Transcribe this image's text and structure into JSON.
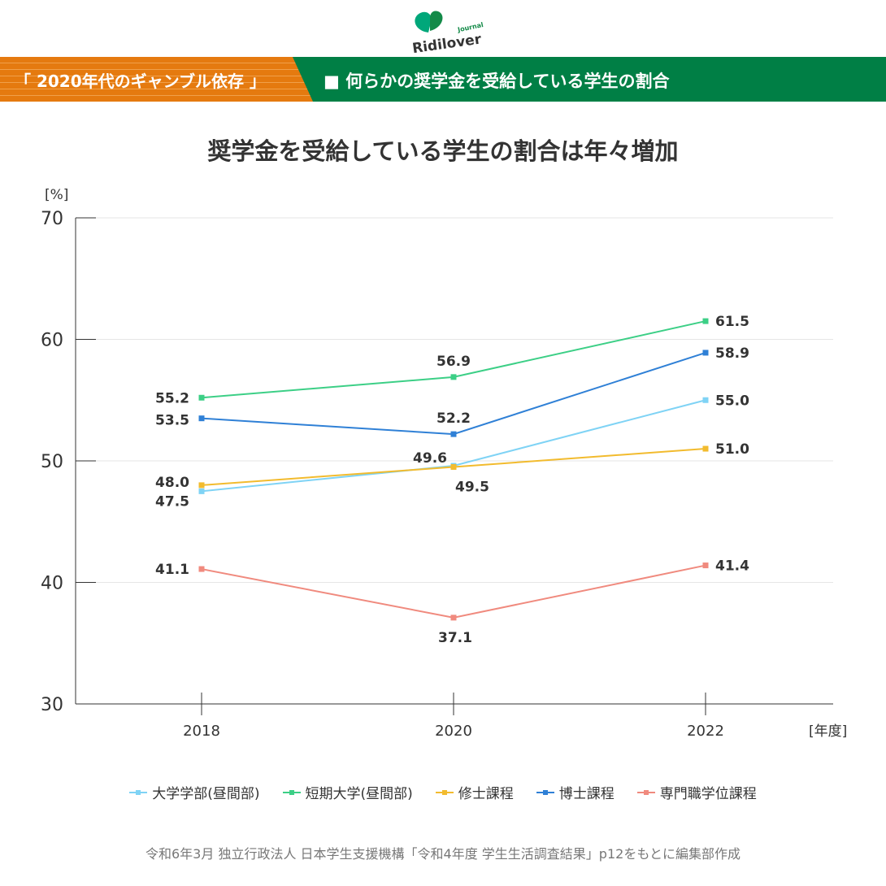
{
  "logo": {
    "brand": "Ridilover",
    "sub": "Journal"
  },
  "banner": {
    "series_label": "「 2020年代のギャンブル依存 」",
    "topic": "■ 何らかの奨学金を受給している学生の割合"
  },
  "chart_data": {
    "type": "line",
    "title": "奨学金を受給している学生の割合は年々増加",
    "ylabel": "[%]",
    "xlabel": "[年度]",
    "x": [
      "2018",
      "2020",
      "2022"
    ],
    "ylim": [
      30,
      70
    ],
    "yticks": [
      "30",
      "40",
      "50",
      "60",
      "70"
    ],
    "grid": true,
    "legend_placement": "bottom",
    "series": [
      {
        "name": "大学学部(昼間部)",
        "color": "#7fd3f5",
        "values": [
          47.5,
          49.6,
          55.0
        ],
        "labels": [
          "47.5",
          "49.6",
          "55.0"
        ]
      },
      {
        "name": "短期大学(昼間部)",
        "color": "#3ccf86",
        "values": [
          55.2,
          56.9,
          61.5
        ],
        "labels": [
          "55.2",
          "56.9",
          "61.5"
        ]
      },
      {
        "name": "修士課程",
        "color": "#f2bb2e",
        "values": [
          48.0,
          49.5,
          51.0
        ],
        "labels": [
          "48.0",
          "49.5",
          "51.0"
        ]
      },
      {
        "name": "博士課程",
        "color": "#2f80d6",
        "values": [
          53.5,
          52.2,
          58.9
        ],
        "labels": [
          "53.5",
          "52.2",
          "58.9"
        ]
      },
      {
        "name": "専門職学位課程",
        "color": "#f08a7e",
        "values": [
          41.1,
          37.1,
          41.4
        ],
        "labels": [
          "41.1",
          "37.1",
          "41.4"
        ]
      }
    ]
  },
  "source": "令和6年3月 独立行政法人 日本学生支援機構「令和4年度 学生生活調査結果」p12をもとに編集部作成"
}
